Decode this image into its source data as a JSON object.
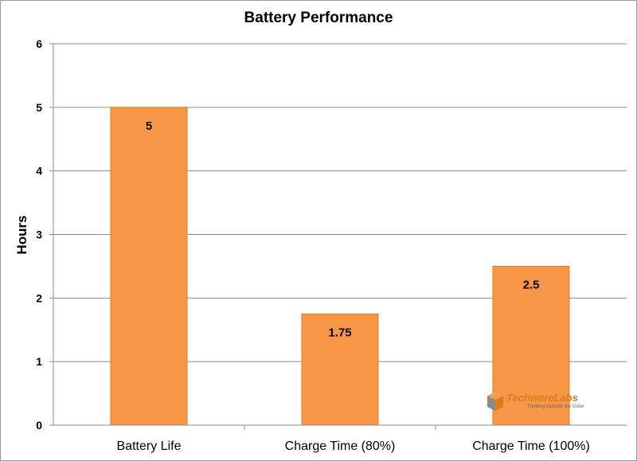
{
  "chart_data": {
    "type": "bar",
    "title": "Battery Performance",
    "ylabel": "Hours",
    "xlabel": "",
    "categories": [
      "Battery Life",
      "Charge Time (80%)",
      "Charge Time (100%)"
    ],
    "values": [
      5,
      1.75,
      2.5
    ],
    "data_labels": [
      "5",
      "1.75",
      "2.5"
    ],
    "ylim": [
      0,
      6
    ],
    "yticks": [
      0,
      1,
      2,
      3,
      4,
      5,
      6
    ],
    "grid": true,
    "legend": "none",
    "bar_color": "#f79646",
    "bar_edge_color": "#e07b1c"
  },
  "watermark": {
    "brand": "TechwareLabs",
    "tagline": "Thinking Outside the Cube"
  }
}
